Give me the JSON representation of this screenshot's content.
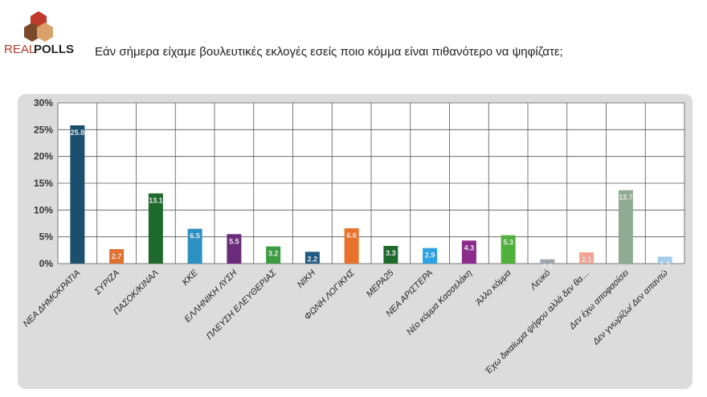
{
  "logo": {
    "part1": "REAL",
    "part2": "POLLS"
  },
  "chart_data": {
    "type": "bar",
    "title": "Εάν σήμερα είχαμε βουλευτικές εκλογές εσείς ποιο κόμμα είναι πιθανότερο να ψηφίζατε;",
    "categories": [
      "ΝΕΑ ΔΗΜΟΚΡΑΤΙΑ",
      "ΣΥΡΙΖΑ",
      "ΠΑΣΟΚ/ΚΙΝΑΛ",
      "ΚΚΕ",
      "ΕΛΛΗΝΙΚΗ ΛΥΣΗ",
      "ΠΛΕΥΣΗ ΕΛΕΥΘΕΡΙΑΣ",
      "ΝΙΚΗ",
      "ΦΩΝΗ ΛΟΓΙΚΗΣ",
      "ΜΕΡΑ25",
      "ΝΕΑ ΑΡΙΣΤΕΡΑ",
      "Νέο κόμμα Κασσελάκη",
      "Άλλο κόμμα",
      "Λευκό",
      "Έχω δικαίωμα ψήφου αλλά δεν θα…",
      "Δεν έχω αποφασίσει",
      "Δεν γνωρίζω/ Δεν απαντώ"
    ],
    "values": [
      25.8,
      2.7,
      13.1,
      6.5,
      5.5,
      3.2,
      2.2,
      6.6,
      3.3,
      2.9,
      4.3,
      5.3,
      0.8,
      2.1,
      13.7,
      1.3
    ],
    "colors": [
      "#1b4f6e",
      "#e2712f",
      "#1e6a2d",
      "#2b90c2",
      "#6b2b7b",
      "#3d9b41",
      "#1f5b82",
      "#e8712b",
      "#1e6a2d",
      "#2ba2e2",
      "#8b2b8b",
      "#4fb03c",
      "#9ca6ae",
      "#f2a392",
      "#8fab91",
      "#a3cbea"
    ],
    "ylim": [
      0,
      30
    ],
    "yticks": [
      {
        "value": 0,
        "label": "0%"
      },
      {
        "value": 5,
        "label": "5%"
      },
      {
        "value": 10,
        "label": "10%"
      },
      {
        "value": 15,
        "label": "15%"
      },
      {
        "value": 20,
        "label": "20%"
      },
      {
        "value": 25,
        "label": "25%"
      },
      {
        "value": 30,
        "label": "30%"
      }
    ],
    "grid": true
  }
}
